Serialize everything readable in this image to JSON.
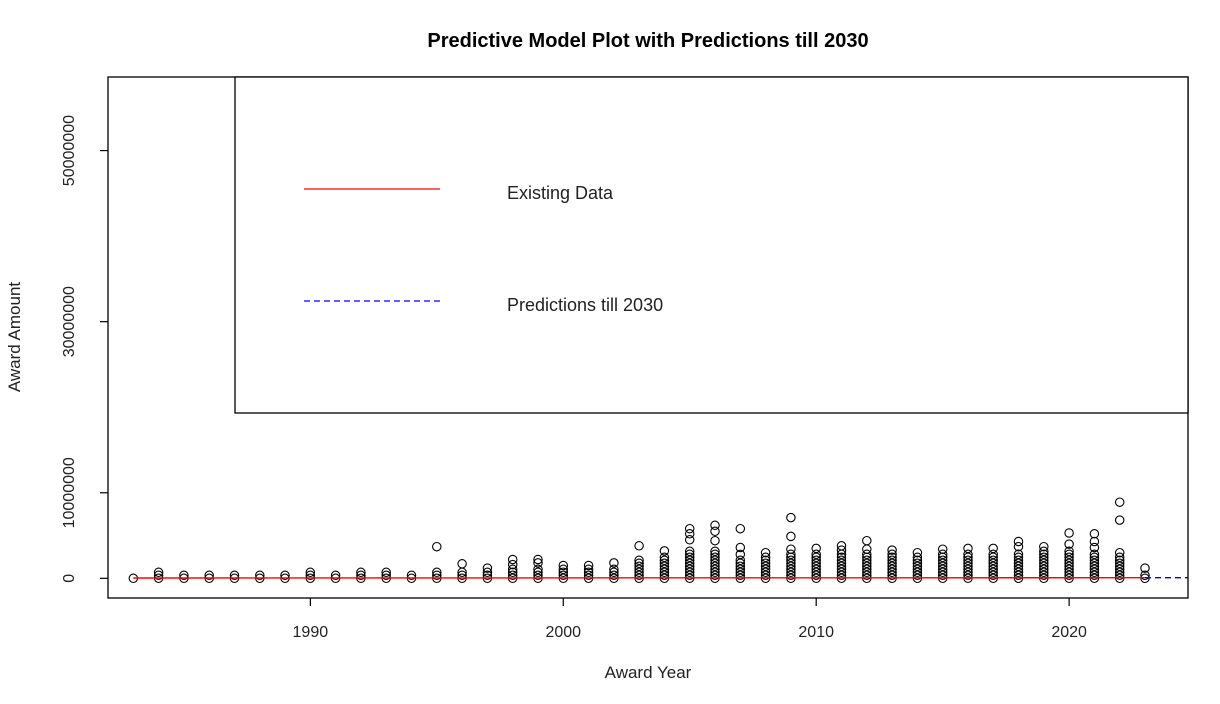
{
  "chart_data": {
    "type": "scatter",
    "title": "Predictive Model Plot with Predictions till 2030",
    "xlabel": "Award Year",
    "ylabel": "Award Amount",
    "xlim": [
      1982,
      2024.7
    ],
    "ylim": [
      -2300000,
      58600000
    ],
    "x_ticks": [
      1990,
      2000,
      2010,
      2020
    ],
    "y_ticks": [
      0,
      10000000,
      30000000,
      50000000
    ],
    "legend": {
      "placement": "top-right",
      "entries": [
        {
          "label": "Existing Data",
          "color": "#ff0000",
          "style": "solid"
        },
        {
          "label": "Predictions till 2030",
          "color": "#0000ff",
          "style": "dashed"
        }
      ]
    },
    "series": [
      {
        "name": "Existing Data",
        "type": "line",
        "color": "#ff0000",
        "x": [
          1983,
          2023
        ],
        "y": [
          40000,
          70000
        ]
      },
      {
        "name": "Predictions till 2030",
        "type": "line",
        "color": "#0000ff",
        "dash": true,
        "x": [
          2023,
          2030
        ],
        "y": [
          70000,
          80000
        ]
      },
      {
        "type": "scatter",
        "marker": "open-circle",
        "points": [
          {
            "x": 1983,
            "y_max": 0,
            "outliers": []
          },
          {
            "x": 1984,
            "y_max": 700000,
            "outliers": []
          },
          {
            "x": 1985,
            "y_max": 450000,
            "outliers": []
          },
          {
            "x": 1986,
            "y_max": 400000,
            "outliers": []
          },
          {
            "x": 1987,
            "y_max": 450000,
            "outliers": []
          },
          {
            "x": 1988,
            "y_max": 600000,
            "outliers": []
          },
          {
            "x": 1989,
            "y_max": 400000,
            "outliers": []
          },
          {
            "x": 1990,
            "y_max": 700000,
            "outliers": []
          },
          {
            "x": 1991,
            "y_max": 600000,
            "outliers": []
          },
          {
            "x": 1992,
            "y_max": 700000,
            "outliers": []
          },
          {
            "x": 1993,
            "y_max": 800000,
            "outliers": []
          },
          {
            "x": 1994,
            "y_max": 500000,
            "outliers": []
          },
          {
            "x": 1995,
            "y_max": 900000,
            "outliers": [
              3700000
            ]
          },
          {
            "x": 1996,
            "y_max": 1000000,
            "outliers": [
              1700000
            ]
          },
          {
            "x": 1997,
            "y_max": 700000,
            "outliers": [
              1200000
            ]
          },
          {
            "x": 1998,
            "y_max": 1100000,
            "outliers": [
              1600000,
              2200000
            ]
          },
          {
            "x": 1999,
            "y_max": 1300000,
            "outliers": [
              1800000,
              2200000
            ]
          },
          {
            "x": 2000,
            "y_max": 1200000,
            "outliers": [
              1500000
            ]
          },
          {
            "x": 2001,
            "y_max": 1100000,
            "outliers": [
              1500000
            ]
          },
          {
            "x": 2002,
            "y_max": 1300000,
            "outliers": [
              1800000
            ]
          },
          {
            "x": 2003,
            "y_max": 2300000,
            "outliers": [
              3800000
            ]
          },
          {
            "x": 2004,
            "y_max": 2600000,
            "outliers": [
              3200000
            ]
          },
          {
            "x": 2005,
            "y_max": 3300000,
            "outliers": [
              4500000,
              5200000,
              5800000
            ]
          },
          {
            "x": 2006,
            "y_max": 3300000,
            "outliers": [
              4400000,
              5500000,
              6200000
            ]
          },
          {
            "x": 2007,
            "y_max": 2200000,
            "outliers": [
              2800000,
              3600000,
              5800000
            ]
          },
          {
            "x": 2008,
            "y_max": 2700000,
            "outliers": [
              3000000
            ]
          },
          {
            "x": 2009,
            "y_max": 2800000,
            "outliers": [
              3400000,
              4900000,
              7100000
            ]
          },
          {
            "x": 2010,
            "y_max": 2900000,
            "outliers": [
              3500000
            ]
          },
          {
            "x": 2011,
            "y_max": 2900000,
            "outliers": [
              3300000,
              3800000
            ]
          },
          {
            "x": 2012,
            "y_max": 2800000,
            "outliers": [
              3400000,
              4400000
            ]
          },
          {
            "x": 2013,
            "y_max": 2800000,
            "outliers": [
              3300000
            ]
          },
          {
            "x": 2014,
            "y_max": 2600000,
            "outliers": [
              3000000
            ]
          },
          {
            "x": 2015,
            "y_max": 2900000,
            "outliers": [
              3400000
            ]
          },
          {
            "x": 2016,
            "y_max": 2800000,
            "outliers": [
              3500000
            ]
          },
          {
            "x": 2017,
            "y_max": 2800000,
            "outliers": [
              3500000
            ]
          },
          {
            "x": 2018,
            "y_max": 3100000,
            "outliers": [
              3700000,
              4300000
            ]
          },
          {
            "x": 2019,
            "y_max": 3200000,
            "outliers": [
              3700000
            ]
          },
          {
            "x": 2020,
            "y_max": 3300000,
            "outliers": [
              4000000,
              5300000
            ]
          },
          {
            "x": 2021,
            "y_max": 3000000,
            "outliers": [
              3600000,
              4300000,
              5200000
            ]
          },
          {
            "x": 2022,
            "y_max": 2600000,
            "outliers": [
              3000000,
              6800000,
              8900000
            ]
          },
          {
            "x": 2023,
            "y_max": 600000,
            "outliers": [
              1200000
            ]
          }
        ]
      }
    ],
    "grid": false
  }
}
